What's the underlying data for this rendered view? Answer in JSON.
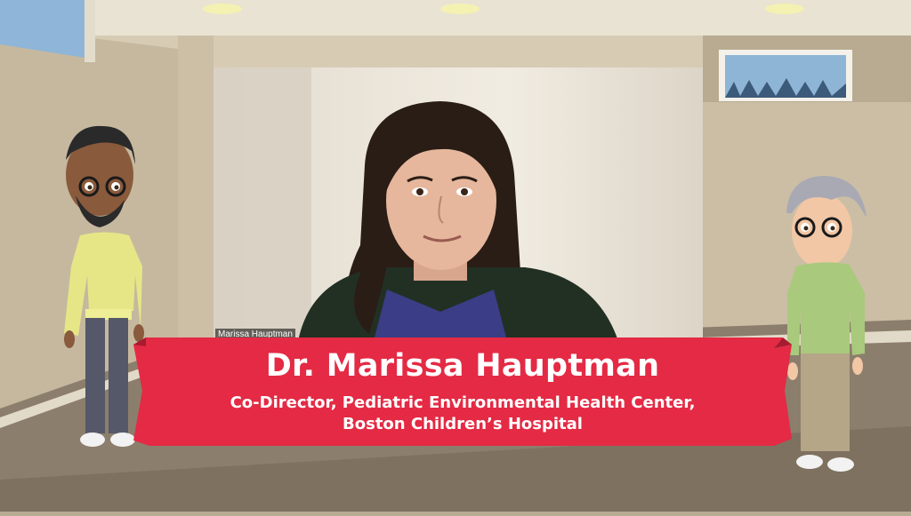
{
  "video": {
    "participant_label": "Marissa Hauptman"
  },
  "lower_third": {
    "name": "Dr. Marissa Hauptman",
    "title_line1": "Co-Director, Pediatric Environmental Health Center,",
    "title_line2": "Boston Children’s Hospital"
  },
  "colors": {
    "banner": "#e42a44",
    "banner_fold": "#a81a2f",
    "wall": "#d8ccb6",
    "floor": "#8b7d6b"
  }
}
